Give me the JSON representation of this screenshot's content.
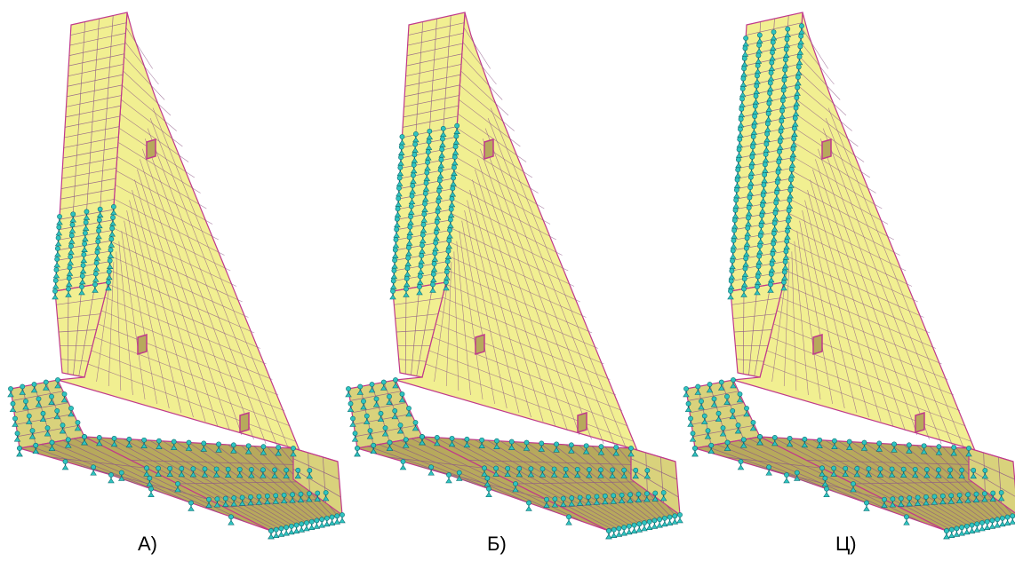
{
  "colors": {
    "background": "#ffffff",
    "concrete_face": "#f1ef91",
    "concrete_side": "#d9d27c",
    "concrete_base": "#b7a95c",
    "mesh_line": "#8e5a86",
    "outline": "#c0398c",
    "support": "#2fc4c0",
    "support_dark": "#0c6d72",
    "opening": "#c0398c"
  },
  "panels": [
    {
      "caption": "А)",
      "support_zone": "low"
    },
    {
      "caption": "Б)",
      "support_zone": "mid"
    },
    {
      "caption": "Ц)",
      "support_zone": "full"
    }
  ]
}
